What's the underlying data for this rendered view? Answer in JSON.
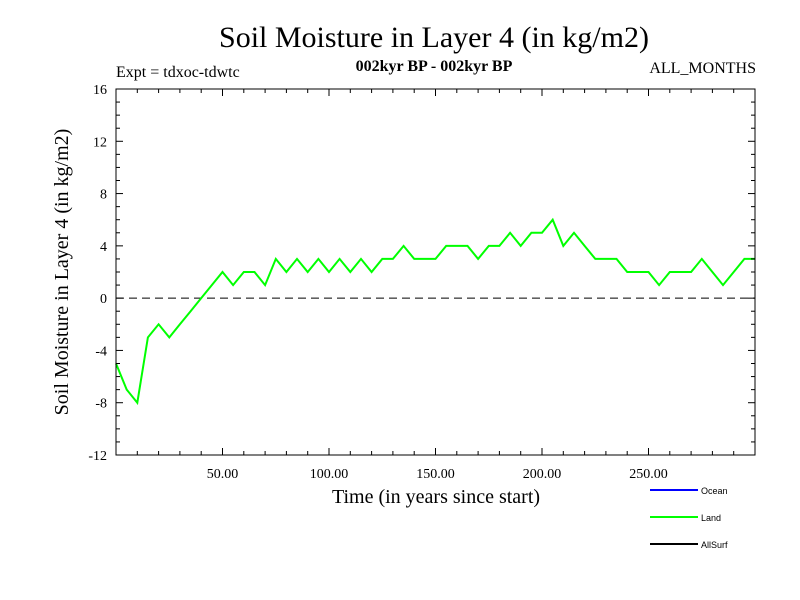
{
  "chart_data": {
    "type": "line",
    "title": "Soil Moisture in Layer 4 (in kg/m2)",
    "subtitle": "002kyr BP - 002kyr BP",
    "experiment": "Expt = tdxoc-tdwtc",
    "months": "ALL_MONTHS",
    "xlabel": "Time (in years since start)",
    "ylabel": "Soil Moisture in Layer 4 (in kg/m2)",
    "xlim": [
      0,
      300
    ],
    "ylim": [
      -12,
      16
    ],
    "x_ticks": [
      50,
      100,
      150,
      200,
      250
    ],
    "x_tick_labels": [
      "50.00",
      "100.00",
      "150.00",
      "200.00",
      "250.00"
    ],
    "y_ticks": [
      -12,
      -8,
      -4,
      0,
      4,
      8,
      12,
      16
    ],
    "y_tick_labels": [
      "-12",
      "-8",
      "-4",
      "0",
      "4",
      "8",
      "12",
      "16"
    ],
    "reference_line": 0,
    "series": [
      {
        "name": "Land",
        "color": "#00ff00",
        "x": [
          0,
          5,
          10,
          15,
          20,
          25,
          30,
          35,
          40,
          45,
          50,
          55,
          60,
          65,
          70,
          75,
          80,
          85,
          90,
          95,
          100,
          105,
          110,
          115,
          120,
          125,
          130,
          135,
          140,
          145,
          150,
          155,
          160,
          165,
          170,
          175,
          180,
          185,
          190,
          195,
          200,
          205,
          210,
          215,
          220,
          225,
          230,
          235,
          240,
          245,
          250,
          255,
          260,
          265,
          270,
          275,
          280,
          285,
          290,
          295,
          300
        ],
        "values": [
          -5,
          -7,
          -8,
          -3,
          -2,
          -3,
          -2,
          -1,
          0,
          1,
          2,
          1,
          2,
          2,
          1,
          3,
          2,
          3,
          2,
          3,
          2,
          3,
          2,
          3,
          2,
          3,
          3,
          4,
          3,
          3,
          3,
          4,
          4,
          4,
          3,
          4,
          4,
          5,
          4,
          5,
          5,
          6,
          4,
          5,
          4,
          3,
          3,
          3,
          2,
          2,
          2,
          1,
          2,
          2,
          2,
          3,
          2,
          1,
          2,
          3,
          3
        ]
      }
    ],
    "legend": [
      {
        "name": "Ocean",
        "color": "#0000ff"
      },
      {
        "name": "Land",
        "color": "#00ff00"
      },
      {
        "name": "AllSurf",
        "color": "#000000"
      }
    ]
  }
}
